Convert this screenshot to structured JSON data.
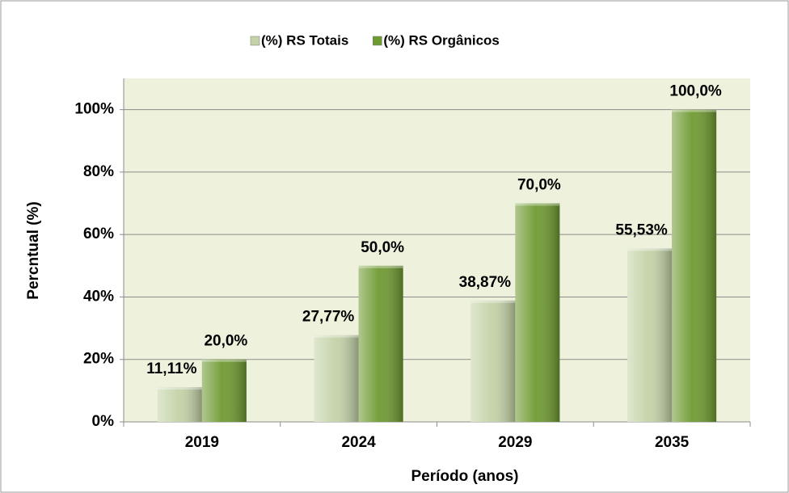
{
  "chart_data": {
    "type": "bar",
    "categories": [
      "2019",
      "2024",
      "2029",
      "2035"
    ],
    "series": [
      {
        "name": "(%) RS Totais",
        "color": "#c4d3a8",
        "values": [
          11.11,
          27.77,
          38.87,
          55.53
        ],
        "value_labels": [
          "11,11%",
          "27,77%",
          "38,87%",
          "55,53%"
        ]
      },
      {
        "name": "(%) RS Orgânicos",
        "color": "#6f9a32",
        "values": [
          20,
          50,
          70,
          100
        ],
        "value_labels": [
          "20,0%",
          "50,0%",
          "70,0%",
          "100,0%"
        ]
      }
    ],
    "ylim": [
      0,
      110
    ],
    "yticks": [
      {
        "value": 0,
        "label": "0%"
      },
      {
        "value": 20,
        "label": "20%"
      },
      {
        "value": 40,
        "label": "40%"
      },
      {
        "value": 60,
        "label": "60%"
      },
      {
        "value": 80,
        "label": "80%"
      },
      {
        "value": 100,
        "label": "100%"
      }
    ],
    "xlabel": "Período (anos)",
    "ylabel": "Percntual (%)",
    "grid": true,
    "legend": "top"
  }
}
